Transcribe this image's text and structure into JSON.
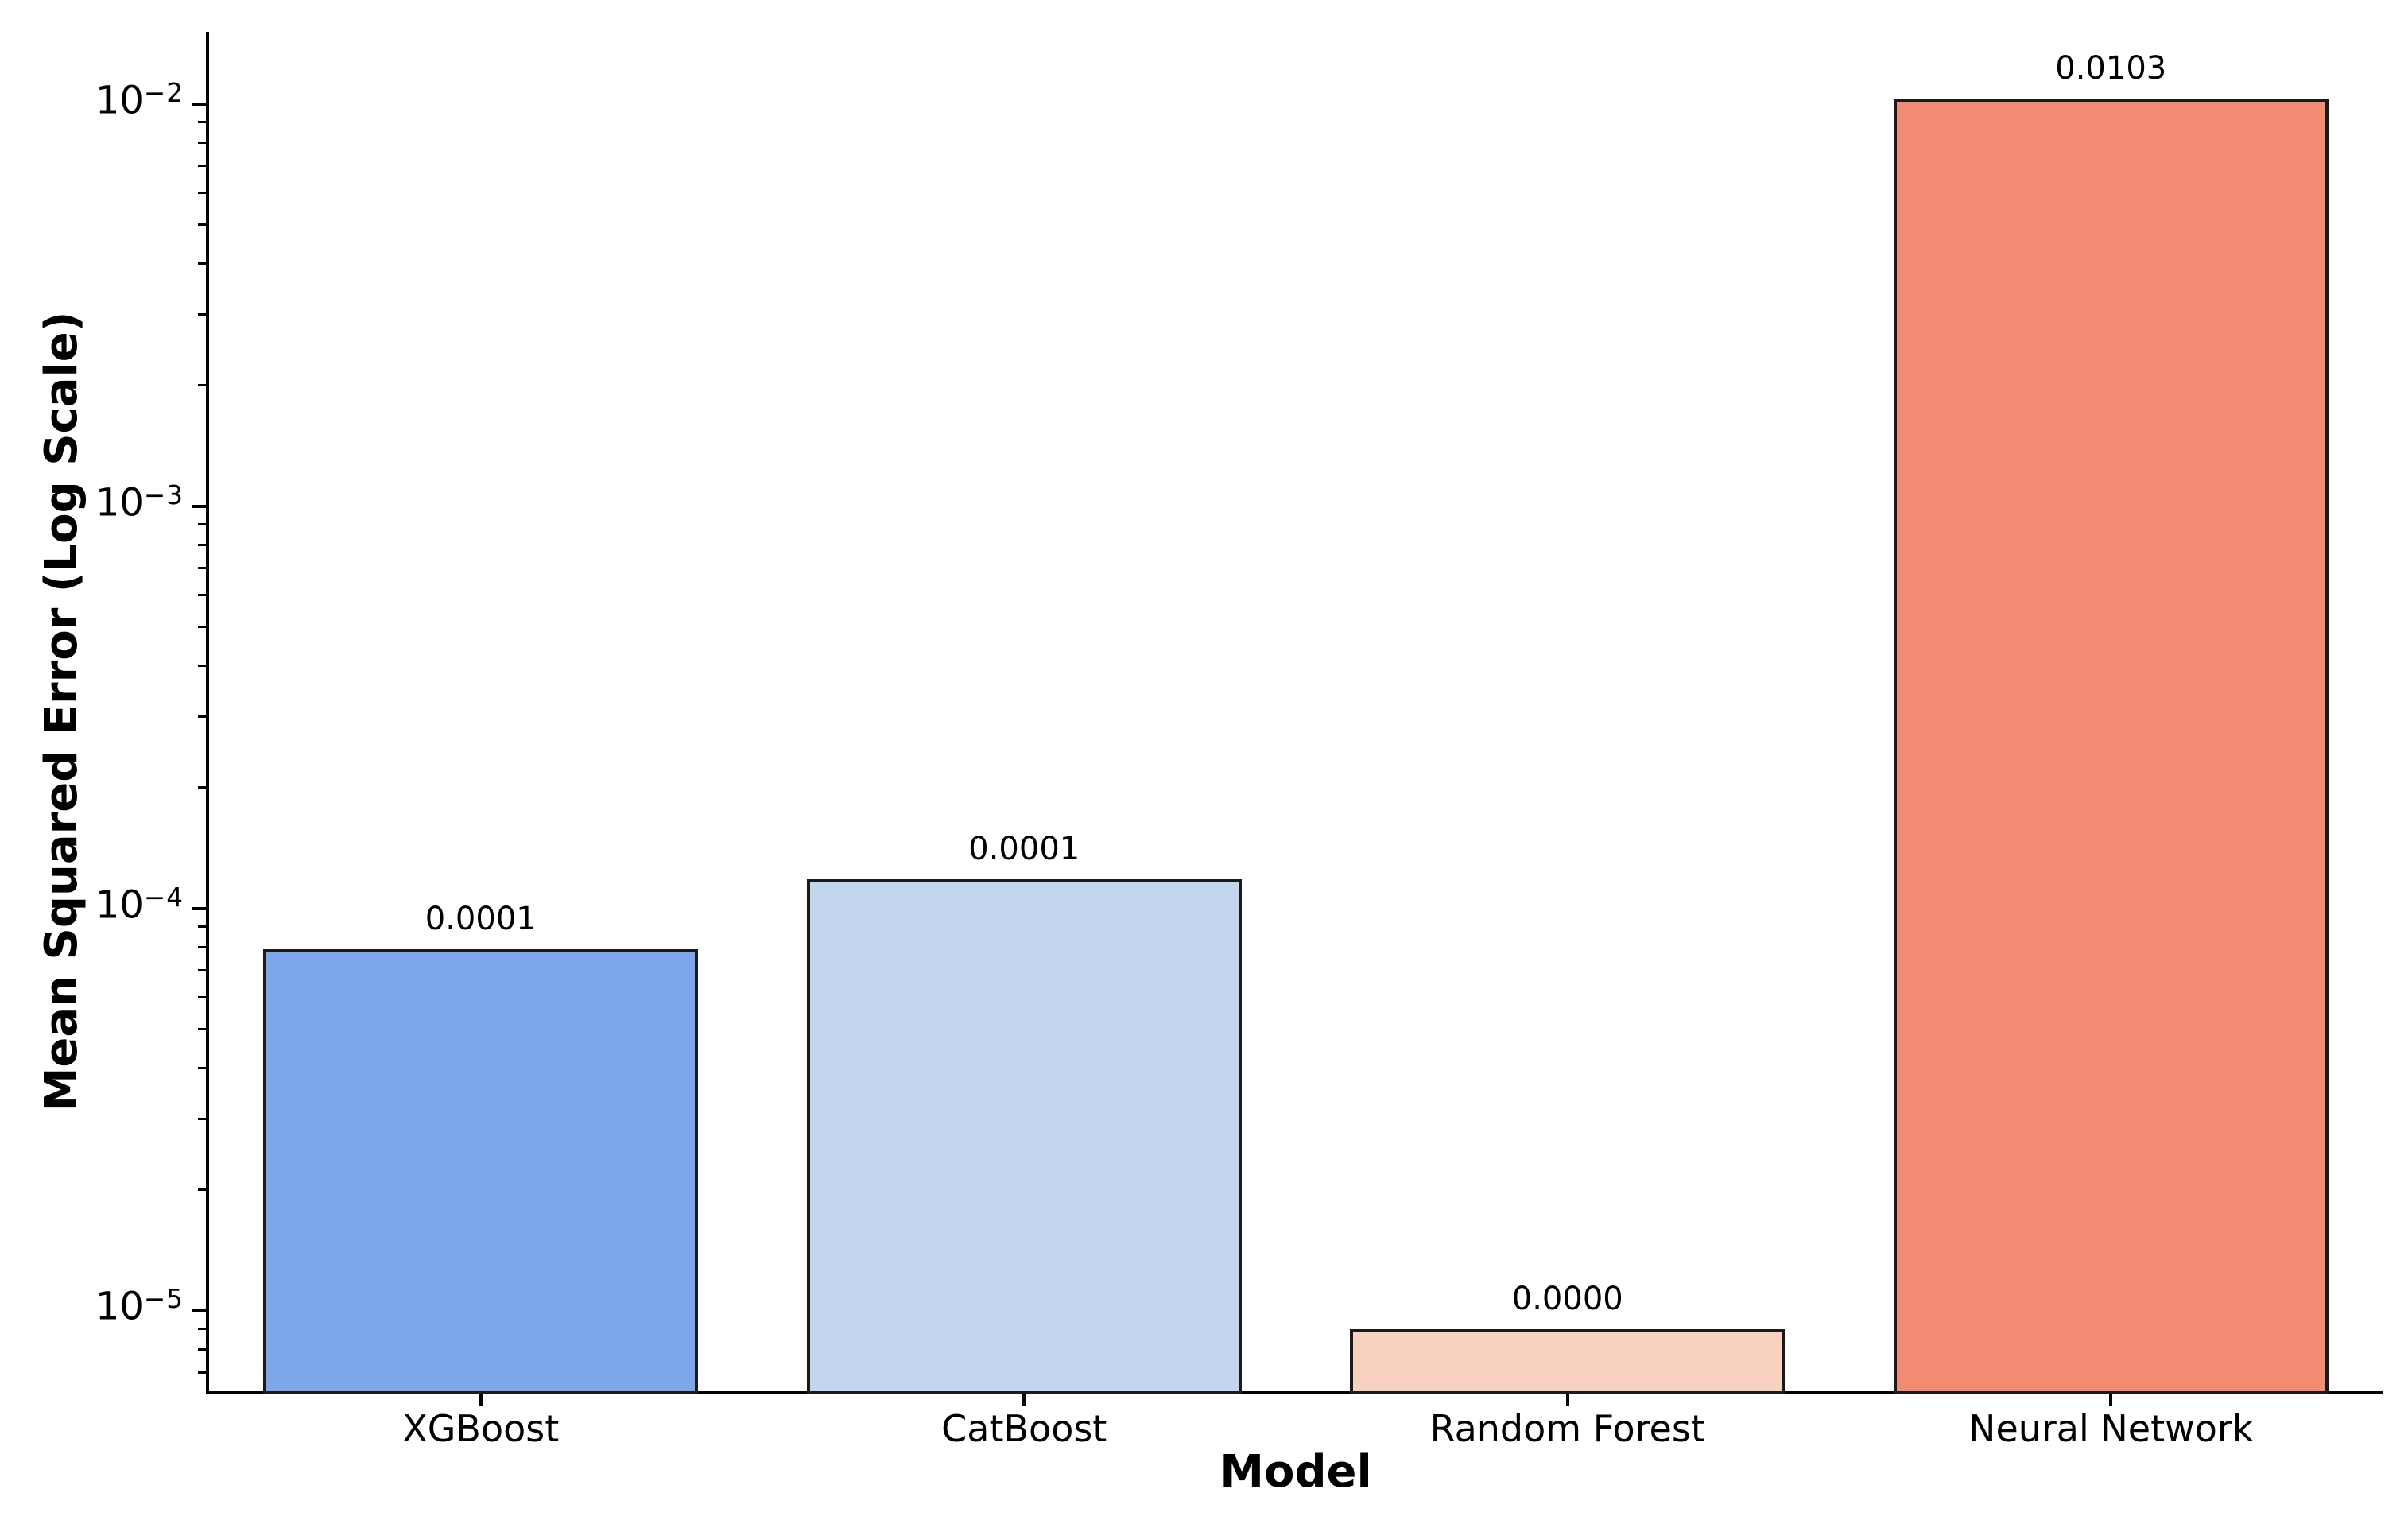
{
  "chart_data": {
    "type": "bar",
    "title": "",
    "xlabel": "Model",
    "ylabel": "Mean Squared Error (Log Scale)",
    "categories": [
      "XGBoost",
      "CatBoost",
      "Random Forest",
      "Neural Network"
    ],
    "values": [
      7.9e-05,
      0.000118,
      9e-06,
      0.0103
    ],
    "bar_labels": [
      "0.0001",
      "0.0001",
      "0.0000",
      "0.0103"
    ],
    "bar_colors": [
      "#7DA5EA",
      "#C3D6F0",
      "#F7D2C0",
      "#F28D73"
    ],
    "bar_edge_color": "#1a1a1a",
    "axis_color": "#000000",
    "text_color": "#000000",
    "background_color": "#ffffff",
    "yscale": "log",
    "ylim": [
      6.3e-06,
      0.0151
    ],
    "ytick_values": [
      0.01,
      0.001,
      0.0001,
      1e-05
    ],
    "yticks": [
      {
        "base": "10",
        "exp": "−2"
      },
      {
        "base": "10",
        "exp": "−3"
      },
      {
        "base": "10",
        "exp": "−4"
      },
      {
        "base": "10",
        "exp": "−5"
      }
    ],
    "minor_tick_multiples": [
      2,
      3,
      4,
      5,
      6,
      7,
      8,
      9
    ],
    "bar_width_fraction": 0.8,
    "grid": false,
    "legend": null
  }
}
